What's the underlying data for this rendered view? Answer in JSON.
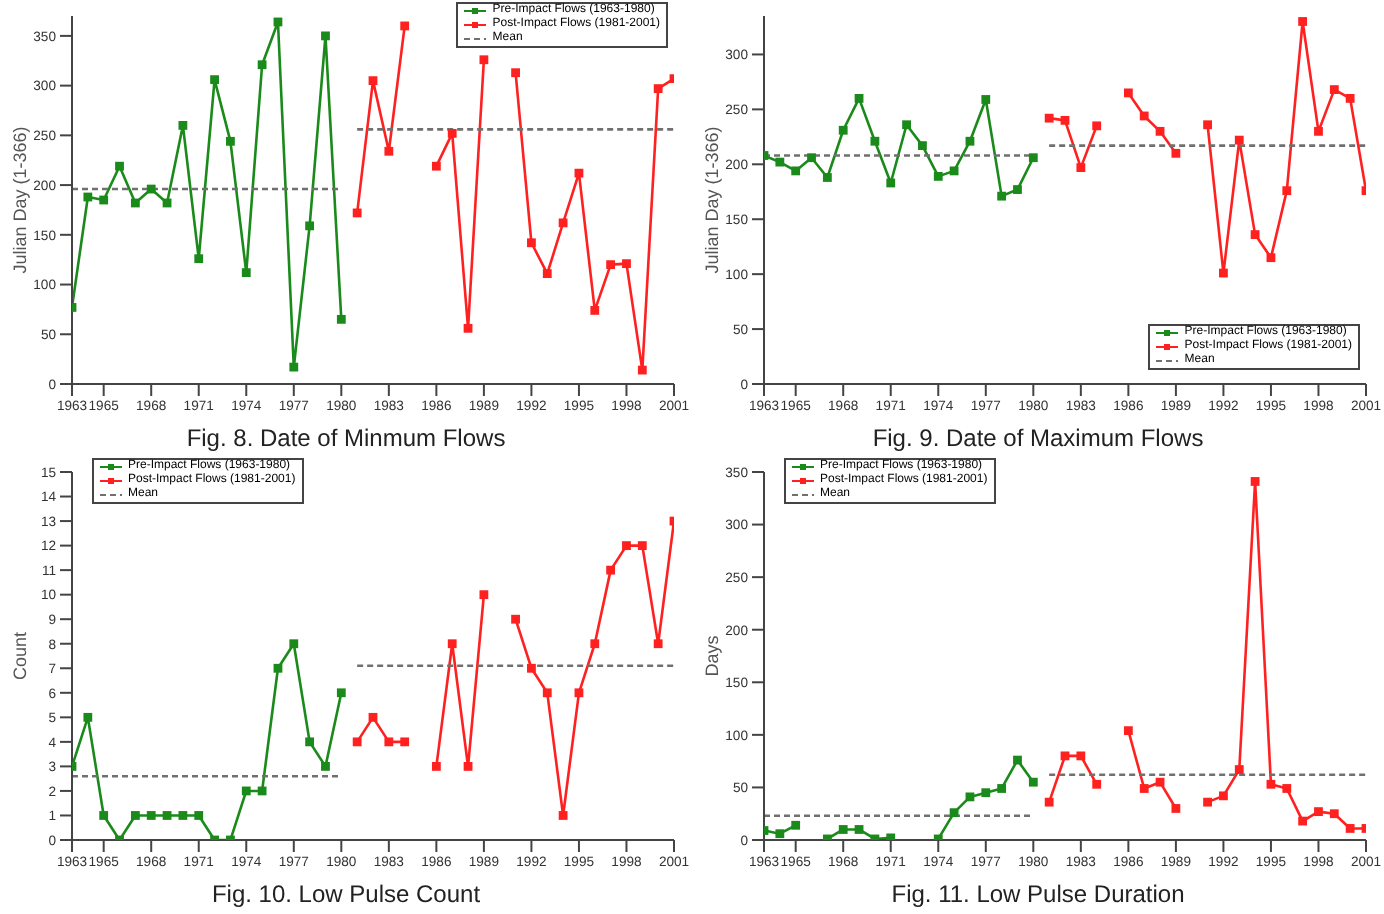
{
  "chart_data": [
    {
      "type": "line",
      "title": "Fig. 8. Date of Minmum Flows",
      "ylabel": "Julian Day (1-366)",
      "x": [
        1963,
        1964,
        1965,
        1966,
        1967,
        1968,
        1969,
        1970,
        1971,
        1972,
        1973,
        1974,
        1975,
        1976,
        1977,
        1978,
        1979,
        1980,
        1981,
        1982,
        1983,
        1984,
        1985,
        1986,
        1987,
        1988,
        1989,
        1990,
        1991,
        1992,
        1993,
        1994,
        1995,
        1996,
        1997,
        1998,
        1999,
        2000,
        2001
      ],
      "xlim": [
        1963,
        2001
      ],
      "xticks": [
        1963,
        1965,
        1968,
        1971,
        1974,
        1977,
        1980,
        1983,
        1986,
        1989,
        1992,
        1995,
        1998,
        2001
      ],
      "ylim": [
        0,
        370
      ],
      "yticks": [
        0,
        50,
        100,
        150,
        200,
        250,
        300,
        350
      ],
      "marker": "square",
      "line_style": "solid",
      "legend": "top right",
      "series": [
        {
          "name": "Pre-Impact Flows (1963-1980)",
          "color": "#1a8a1a",
          "values": [
            77,
            188,
            185,
            219,
            182,
            196,
            182,
            260,
            126,
            306,
            244,
            112,
            321,
            364,
            17,
            159,
            350,
            65,
            null,
            null,
            null,
            null,
            null,
            null,
            null,
            null,
            null,
            null,
            null,
            null,
            null,
            null,
            null,
            null,
            null,
            null,
            null,
            null,
            null
          ]
        },
        {
          "name": "Post-Impact Flows (1981-2001)",
          "color": "#ff2020",
          "values": [
            null,
            null,
            null,
            null,
            null,
            null,
            null,
            null,
            null,
            null,
            null,
            null,
            null,
            null,
            null,
            null,
            null,
            null,
            172,
            305,
            234,
            360,
            null,
            219,
            252,
            56,
            326,
            null,
            313,
            142,
            111,
            162,
            212,
            74,
            120,
            121,
            14,
            297,
            307
          ]
        },
        {
          "name": "Mean",
          "color": "#707070",
          "marker": "none",
          "line_style": "dashed",
          "x": [
            1963,
            1980
          ],
          "values": [
            196,
            196
          ]
        },
        {
          "color": "#707070",
          "marker": "none",
          "line_style": "dashed",
          "x": [
            1981,
            2001
          ],
          "values": [
            256,
            256
          ]
        }
      ]
    },
    {
      "type": "line",
      "title": "Fig. 9. Date of Maximum Flows",
      "ylabel": "Julian Day (1-366)",
      "x": [
        1963,
        1964,
        1965,
        1966,
        1967,
        1968,
        1969,
        1970,
        1971,
        1972,
        1973,
        1974,
        1975,
        1976,
        1977,
        1978,
        1979,
        1980,
        1981,
        1982,
        1983,
        1984,
        1985,
        1986,
        1987,
        1988,
        1989,
        1990,
        1991,
        1992,
        1993,
        1994,
        1995,
        1996,
        1997,
        1998,
        1999,
        2000,
        2001
      ],
      "xlim": [
        1963,
        2001
      ],
      "xticks": [
        1963,
        1965,
        1968,
        1971,
        1974,
        1977,
        1980,
        1983,
        1986,
        1989,
        1992,
        1995,
        1998,
        2001
      ],
      "ylim": [
        0,
        335
      ],
      "yticks": [
        0,
        50,
        100,
        150,
        200,
        250,
        300
      ],
      "marker": "square",
      "line_style": "solid",
      "legend": "bottom right",
      "series": [
        {
          "name": "Pre-Impact Flows (1963-1980)",
          "color": "#1a8a1a",
          "values": [
            208,
            202,
            194,
            206,
            188,
            231,
            260,
            221,
            183,
            236,
            217,
            189,
            194,
            221,
            259,
            171,
            177,
            206,
            null,
            null,
            null,
            null,
            null,
            null,
            null,
            null,
            null,
            null,
            null,
            null,
            null,
            null,
            null,
            null,
            null,
            null,
            null,
            null,
            null
          ]
        },
        {
          "name": "Post-Impact Flows (1981-2001)",
          "color": "#ff2020",
          "values": [
            null,
            null,
            null,
            null,
            null,
            null,
            null,
            null,
            null,
            null,
            null,
            null,
            null,
            null,
            null,
            null,
            null,
            null,
            242,
            240,
            197,
            235,
            null,
            265,
            244,
            230,
            210,
            null,
            236,
            101,
            222,
            136,
            115,
            176,
            330,
            230,
            268,
            260,
            176
          ]
        },
        {
          "name": "Mean",
          "color": "#707070",
          "marker": "none",
          "line_style": "dashed",
          "x": [
            1963,
            1980
          ],
          "values": [
            208,
            208
          ]
        },
        {
          "color": "#707070",
          "marker": "none",
          "line_style": "dashed",
          "x": [
            1981,
            2001
          ],
          "values": [
            217,
            217
          ]
        }
      ]
    },
    {
      "type": "line",
      "title": "Fig. 10. Low Pulse Count",
      "ylabel": "Count",
      "x": [
        1963,
        1964,
        1965,
        1966,
        1967,
        1968,
        1969,
        1970,
        1971,
        1972,
        1973,
        1974,
        1975,
        1976,
        1977,
        1978,
        1979,
        1980,
        1981,
        1982,
        1983,
        1984,
        1985,
        1986,
        1987,
        1988,
        1989,
        1990,
        1991,
        1992,
        1993,
        1994,
        1995,
        1996,
        1997,
        1998,
        1999,
        2000,
        2001
      ],
      "xlim": [
        1963,
        2001
      ],
      "xticks": [
        1963,
        1965,
        1968,
        1971,
        1974,
        1977,
        1980,
        1983,
        1986,
        1989,
        1992,
        1995,
        1998,
        2001
      ],
      "ylim": [
        0,
        15
      ],
      "yticks": [
        0,
        1,
        2,
        3,
        4,
        5,
        6,
        7,
        8,
        9,
        10,
        11,
        12,
        13,
        14,
        15
      ],
      "marker": "square",
      "line_style": "solid",
      "legend": "top left",
      "series": [
        {
          "name": "Pre-Impact Flows (1963-1980)",
          "color": "#1a8a1a",
          "values": [
            3,
            5,
            1,
            0,
            1,
            1,
            1,
            1,
            1,
            0,
            0,
            2,
            2,
            7,
            8,
            4,
            3,
            6,
            null,
            null,
            null,
            null,
            null,
            null,
            null,
            null,
            null,
            null,
            null,
            null,
            null,
            null,
            null,
            null,
            null,
            null,
            null,
            null,
            null
          ]
        },
        {
          "name": "Post-Impact Flows (1981-2001)",
          "color": "#ff2020",
          "values": [
            null,
            null,
            null,
            null,
            null,
            null,
            null,
            null,
            null,
            null,
            null,
            null,
            null,
            null,
            null,
            null,
            null,
            null,
            4,
            5,
            4,
            4,
            null,
            3,
            8,
            3,
            10,
            null,
            9,
            7,
            6,
            1,
            6,
            8,
            11,
            12,
            12,
            8,
            13
          ]
        },
        {
          "name": "Mean",
          "color": "#707070",
          "marker": "none",
          "line_style": "dashed",
          "x": [
            1963,
            1980
          ],
          "values": [
            2.6,
            2.6
          ]
        },
        {
          "color": "#707070",
          "marker": "none",
          "line_style": "dashed",
          "x": [
            1981,
            2001
          ],
          "values": [
            7.1,
            7.1
          ]
        }
      ]
    },
    {
      "type": "line",
      "title": "Fig. 11. Low Pulse Duration",
      "ylabel": "Days",
      "x": [
        1963,
        1964,
        1965,
        1966,
        1967,
        1968,
        1969,
        1970,
        1971,
        1972,
        1973,
        1974,
        1975,
        1976,
        1977,
        1978,
        1979,
        1980,
        1981,
        1982,
        1983,
        1984,
        1985,
        1986,
        1987,
        1988,
        1989,
        1990,
        1991,
        1992,
        1993,
        1994,
        1995,
        1996,
        1997,
        1998,
        1999,
        2000,
        2001
      ],
      "xlim": [
        1963,
        2001
      ],
      "xticks": [
        1963,
        1965,
        1968,
        1971,
        1974,
        1977,
        1980,
        1983,
        1986,
        1989,
        1992,
        1995,
        1998,
        2001
      ],
      "ylim": [
        0,
        350
      ],
      "yticks": [
        0,
        50,
        100,
        150,
        200,
        250,
        300,
        350
      ],
      "marker": "square",
      "line_style": "solid",
      "legend": "top left",
      "series": [
        {
          "name": "Pre-Impact Flows (1963-1980)",
          "color": "#1a8a1a",
          "values": [
            9,
            6,
            14,
            null,
            1,
            10,
            10,
            1,
            2,
            null,
            null,
            1,
            26,
            41,
            45,
            49,
            76,
            55,
            null,
            null,
            null,
            null,
            null,
            null,
            null,
            null,
            null,
            null,
            null,
            null,
            null,
            null,
            null,
            null,
            null,
            null,
            null,
            null,
            null
          ]
        },
        {
          "name": "Post-Impact Flows (1981-2001)",
          "color": "#ff2020",
          "values": [
            null,
            null,
            null,
            null,
            null,
            null,
            null,
            null,
            null,
            null,
            null,
            null,
            null,
            null,
            null,
            null,
            null,
            null,
            36,
            80,
            80,
            53,
            null,
            104,
            49,
            55,
            30,
            null,
            36,
            42,
            67,
            341,
            53,
            49,
            18,
            27,
            25,
            11,
            11
          ]
        },
        {
          "name": "Mean",
          "color": "#707070",
          "marker": "none",
          "line_style": "dashed",
          "x": [
            1963,
            1980
          ],
          "values": [
            23,
            23
          ]
        },
        {
          "color": "#707070",
          "marker": "none",
          "line_style": "dashed",
          "x": [
            1981,
            2001
          ],
          "values": [
            62,
            62
          ]
        }
      ]
    }
  ]
}
